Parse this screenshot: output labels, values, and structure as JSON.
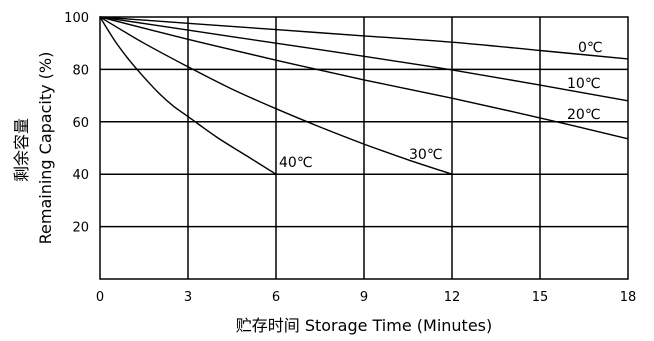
{
  "chart_data": {
    "type": "line",
    "xlabel": "贮存时间 Storage Time (Minutes)",
    "ylabel_cn": "剩余容量",
    "ylabel_en": "Remaining Capacity (%)",
    "xlim": [
      0,
      18
    ],
    "ylim": [
      0,
      100
    ],
    "x_ticks": [
      0,
      3,
      6,
      9,
      12,
      15,
      18
    ],
    "y_ticks": [
      20,
      40,
      60,
      80,
      100
    ],
    "grid": true,
    "series": [
      {
        "name": "0℃",
        "x": [
          0,
          3,
          6,
          9,
          12,
          15,
          18
        ],
        "y": [
          100,
          97.6,
          95.2,
          92.8,
          90.4,
          87.2,
          84
        ]
      },
      {
        "name": "10℃",
        "x": [
          0,
          3,
          6,
          9,
          12,
          15,
          18
        ],
        "y": [
          100,
          95,
          90,
          85,
          79.8,
          74,
          68
        ]
      },
      {
        "name": "20℃",
        "x": [
          0,
          3,
          6,
          9,
          12,
          15,
          18
        ],
        "y": [
          100,
          91.5,
          83.5,
          76,
          69,
          61.5,
          53.5
        ]
      },
      {
        "name": "30℃",
        "x": [
          0,
          1.5,
          3,
          4.5,
          6,
          7.5,
          9,
          10.5,
          12
        ],
        "y": [
          100,
          90,
          81,
          72.5,
          65,
          58,
          51.5,
          45.5,
          40
        ]
      },
      {
        "name": "40℃",
        "x": [
          0,
          0.5,
          1,
          1.5,
          2,
          2.5,
          3,
          4,
          5,
          6
        ],
        "y": [
          100,
          91,
          83.5,
          77,
          71,
          66,
          62,
          54,
          47,
          40
        ]
      }
    ]
  }
}
